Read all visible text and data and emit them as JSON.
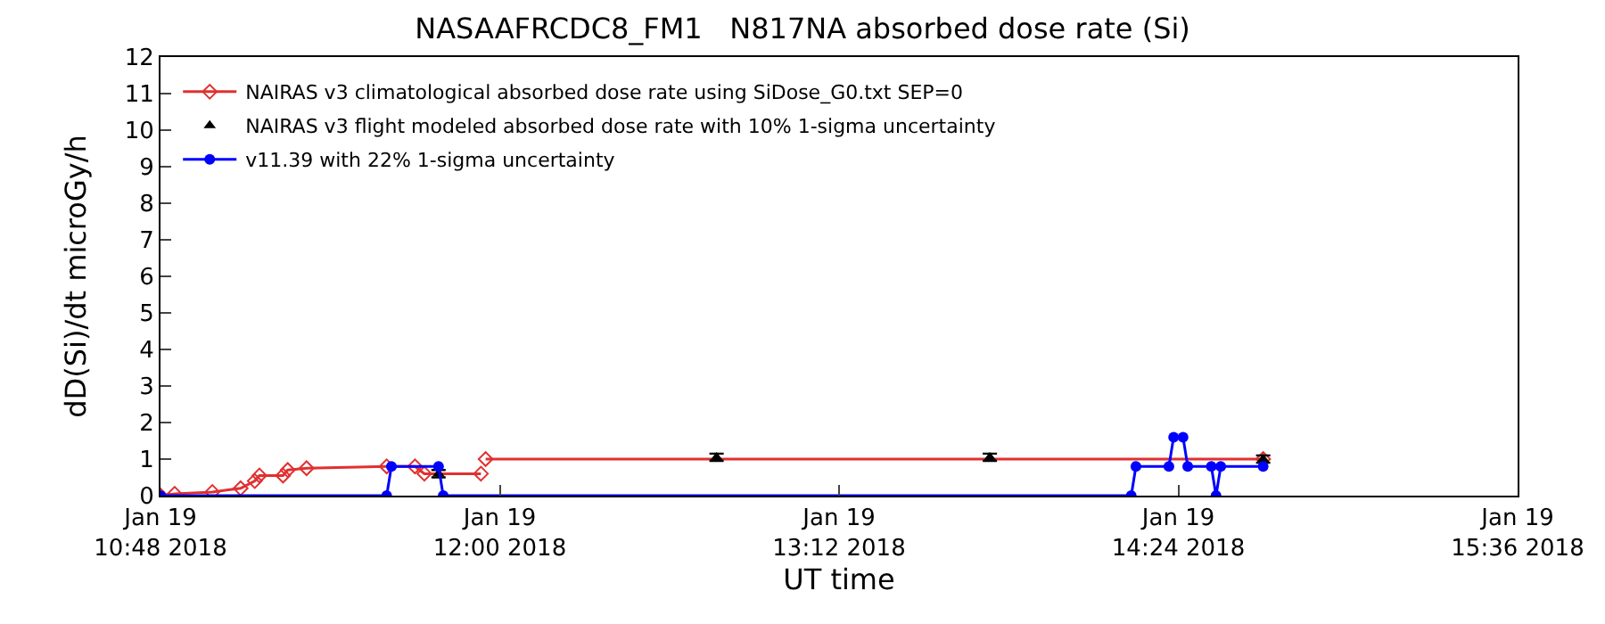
{
  "chart_data": {
    "type": "line",
    "title": "NASAAFRCDC8_FM1   N817NA absorbed dose rate (Si)",
    "xlabel": "UT time",
    "ylabel": "dD(Si)/dt microGy/h",
    "xlim": [
      "2018-01-19T10:48",
      "2018-01-19T15:36"
    ],
    "xticks": [
      {
        "value": "2018-01-19T10:48",
        "label": "Jan 19\n10:48 2018"
      },
      {
        "value": "2018-01-19T12:00",
        "label": "Jan 19\n12:00 2018"
      },
      {
        "value": "2018-01-19T13:12",
        "label": "Jan 19\n13:12 2018"
      },
      {
        "value": "2018-01-19T14:24",
        "label": "Jan 19\n14:24 2018"
      },
      {
        "value": "2018-01-19T15:36",
        "label": "Jan 19\n15:36 2018"
      }
    ],
    "ylim": [
      0,
      12
    ],
    "yticks": [
      0,
      1,
      2,
      3,
      4,
      5,
      6,
      7,
      8,
      9,
      10,
      11,
      12
    ],
    "grid": false,
    "legend": "top left",
    "series": [
      {
        "name": "NAIRAS v3 climatological absorbed dose rate using SiDose_G0.txt SEP=0",
        "color": "#e03030",
        "marker": "diamond",
        "x": [
          "2018-01-19T10:48",
          "2018-01-19T10:51",
          "2018-01-19T10:59",
          "2018-01-19T11:05",
          "2018-01-19T11:08",
          "2018-01-19T11:09",
          "2018-01-19T11:14",
          "2018-01-19T11:15",
          "2018-01-19T11:19",
          "2018-01-19T11:36",
          "2018-01-19T11:42",
          "2018-01-19T11:44",
          "2018-01-19T11:56"
        ],
        "values": [
          0,
          0.05,
          0.1,
          0.2,
          0.4,
          0.55,
          0.55,
          0.7,
          0.75,
          0.8,
          0.8,
          0.6,
          0.6
        ]
      },
      {
        "name": null,
        "color": "#e03030",
        "marker": "diamond",
        "x": [
          "2018-01-19T11:57",
          "2018-01-19T14:42"
        ],
        "values": [
          1.0,
          1.0
        ]
      },
      {
        "name": "NAIRAS v3 flight modeled absorbed dose rate with 10% 1-sigma uncertainty",
        "color": "#000000",
        "type": "scatter",
        "marker": "triangle",
        "x": [
          "2018-01-19T11:47",
          "2018-01-19T12:46",
          "2018-01-19T13:44",
          "2018-01-19T14:42"
        ],
        "values": [
          0.6,
          1.05,
          1.05,
          1.0
        ],
        "errors": [
          0.1,
          0.1,
          0.1,
          0.1
        ]
      },
      {
        "name": "v11.39 with 22% 1-sigma uncertainty",
        "color": "#0000ff",
        "marker": "circle",
        "x": [
          "2018-01-19T10:48",
          "2018-01-19T11:36",
          "2018-01-19T11:37",
          "2018-01-19T11:47",
          "2018-01-19T11:48",
          "2018-01-19T14:14",
          "2018-01-19T14:15",
          "2018-01-19T14:22",
          "2018-01-19T14:23",
          "2018-01-19T14:25",
          "2018-01-19T14:26",
          "2018-01-19T14:31",
          "2018-01-19T14:32",
          "2018-01-19T14:33",
          "2018-01-19T14:42"
        ],
        "values": [
          0,
          0,
          0.8,
          0.8,
          0,
          0,
          0.8,
          0.8,
          1.6,
          1.6,
          0.8,
          0.8,
          0,
          0.8,
          0.8
        ]
      }
    ]
  }
}
